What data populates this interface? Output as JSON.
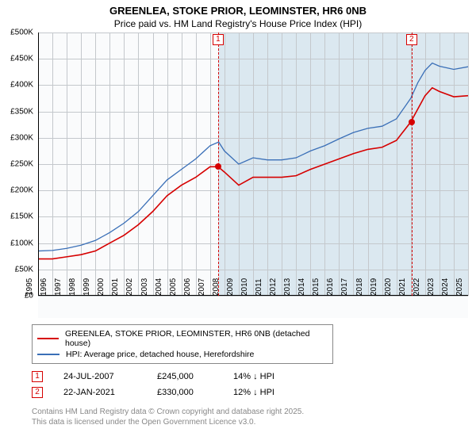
{
  "title_line1": "GREENLEA, STOKE PRIOR, LEOMINSTER, HR6 0NB",
  "title_line2": "Price paid vs. HM Land Registry's House Price Index (HPI)",
  "chart": {
    "type": "line",
    "background_plot": "#dbe8f0",
    "background_pre": "#fafbfc",
    "grid_color": "#c4c8cc",
    "axis_color": "#000000",
    "ylim": [
      0,
      500
    ],
    "ytick_step": 50,
    "ytick_prefix": "£",
    "ytick_suffix": "K",
    "x_years": [
      1995,
      1996,
      1997,
      1998,
      1999,
      2000,
      2001,
      2002,
      2003,
      2004,
      2005,
      2006,
      2007,
      2008,
      2009,
      2010,
      2011,
      2012,
      2013,
      2014,
      2015,
      2016,
      2017,
      2018,
      2019,
      2020,
      2021,
      2022,
      2023,
      2024,
      2025
    ],
    "x_label_fontsize": 10,
    "y_label_fontsize": 10,
    "pre_highlight_until_year": 2007.56,
    "series": [
      {
        "name": "GREENLEA, STOKE PRIOR, LEOMINSTER, HR6 0NB (detached house)",
        "color": "#d60000",
        "width": 1.6,
        "data": [
          [
            1995,
            70
          ],
          [
            1996,
            70
          ],
          [
            1997,
            74
          ],
          [
            1998,
            78
          ],
          [
            1999,
            85
          ],
          [
            2000,
            100
          ],
          [
            2001,
            115
          ],
          [
            2002,
            135
          ],
          [
            2003,
            160
          ],
          [
            2004,
            190
          ],
          [
            2005,
            210
          ],
          [
            2006,
            225
          ],
          [
            2007,
            245
          ],
          [
            2007.56,
            245
          ],
          [
            2008,
            235
          ],
          [
            2009,
            210
          ],
          [
            2010,
            225
          ],
          [
            2011,
            225
          ],
          [
            2012,
            225
          ],
          [
            2013,
            228
          ],
          [
            2014,
            240
          ],
          [
            2015,
            250
          ],
          [
            2016,
            260
          ],
          [
            2017,
            270
          ],
          [
            2018,
            278
          ],
          [
            2019,
            282
          ],
          [
            2020,
            295
          ],
          [
            2021,
            330
          ],
          [
            2021.5,
            355
          ],
          [
            2022,
            380
          ],
          [
            2022.5,
            395
          ],
          [
            2023,
            388
          ],
          [
            2024,
            378
          ],
          [
            2025,
            380
          ]
        ]
      },
      {
        "name": "HPI: Average price, detached house, Herefordshire",
        "color": "#3a6fb7",
        "width": 1.3,
        "data": [
          [
            1995,
            85
          ],
          [
            1996,
            86
          ],
          [
            1997,
            90
          ],
          [
            1998,
            96
          ],
          [
            1999,
            105
          ],
          [
            2000,
            120
          ],
          [
            2001,
            138
          ],
          [
            2002,
            160
          ],
          [
            2003,
            190
          ],
          [
            2004,
            220
          ],
          [
            2005,
            240
          ],
          [
            2006,
            260
          ],
          [
            2007,
            285
          ],
          [
            2007.6,
            292
          ],
          [
            2008,
            275
          ],
          [
            2009,
            250
          ],
          [
            2010,
            262
          ],
          [
            2011,
            258
          ],
          [
            2012,
            258
          ],
          [
            2013,
            262
          ],
          [
            2014,
            275
          ],
          [
            2015,
            285
          ],
          [
            2016,
            298
          ],
          [
            2017,
            310
          ],
          [
            2018,
            318
          ],
          [
            2019,
            322
          ],
          [
            2020,
            336
          ],
          [
            2021,
            375
          ],
          [
            2021.5,
            405
          ],
          [
            2022,
            428
          ],
          [
            2022.5,
            442
          ],
          [
            2023,
            436
          ],
          [
            2024,
            430
          ],
          [
            2025,
            435
          ]
        ]
      }
    ],
    "sale_markers": [
      {
        "n": "1",
        "year": 2007.56,
        "value": 245,
        "color": "#d60000"
      },
      {
        "n": "2",
        "year": 2021.06,
        "value": 330,
        "color": "#d60000"
      }
    ]
  },
  "legend": [
    {
      "color": "#d60000",
      "label": "GREENLEA, STOKE PRIOR, LEOMINSTER, HR6 0NB (detached house)"
    },
    {
      "color": "#3a6fb7",
      "label": "HPI: Average price, detached house, Herefordshire"
    }
  ],
  "sales": [
    {
      "n": "1",
      "color": "#d60000",
      "date": "24-JUL-2007",
      "price": "£245,000",
      "diff": "14% ↓ HPI"
    },
    {
      "n": "2",
      "color": "#d60000",
      "date": "22-JAN-2021",
      "price": "£330,000",
      "diff": "12% ↓ HPI"
    }
  ],
  "footer_line1": "Contains HM Land Registry data © Crown copyright and database right 2025.",
  "footer_line2": "This data is licensed under the Open Government Licence v3.0."
}
